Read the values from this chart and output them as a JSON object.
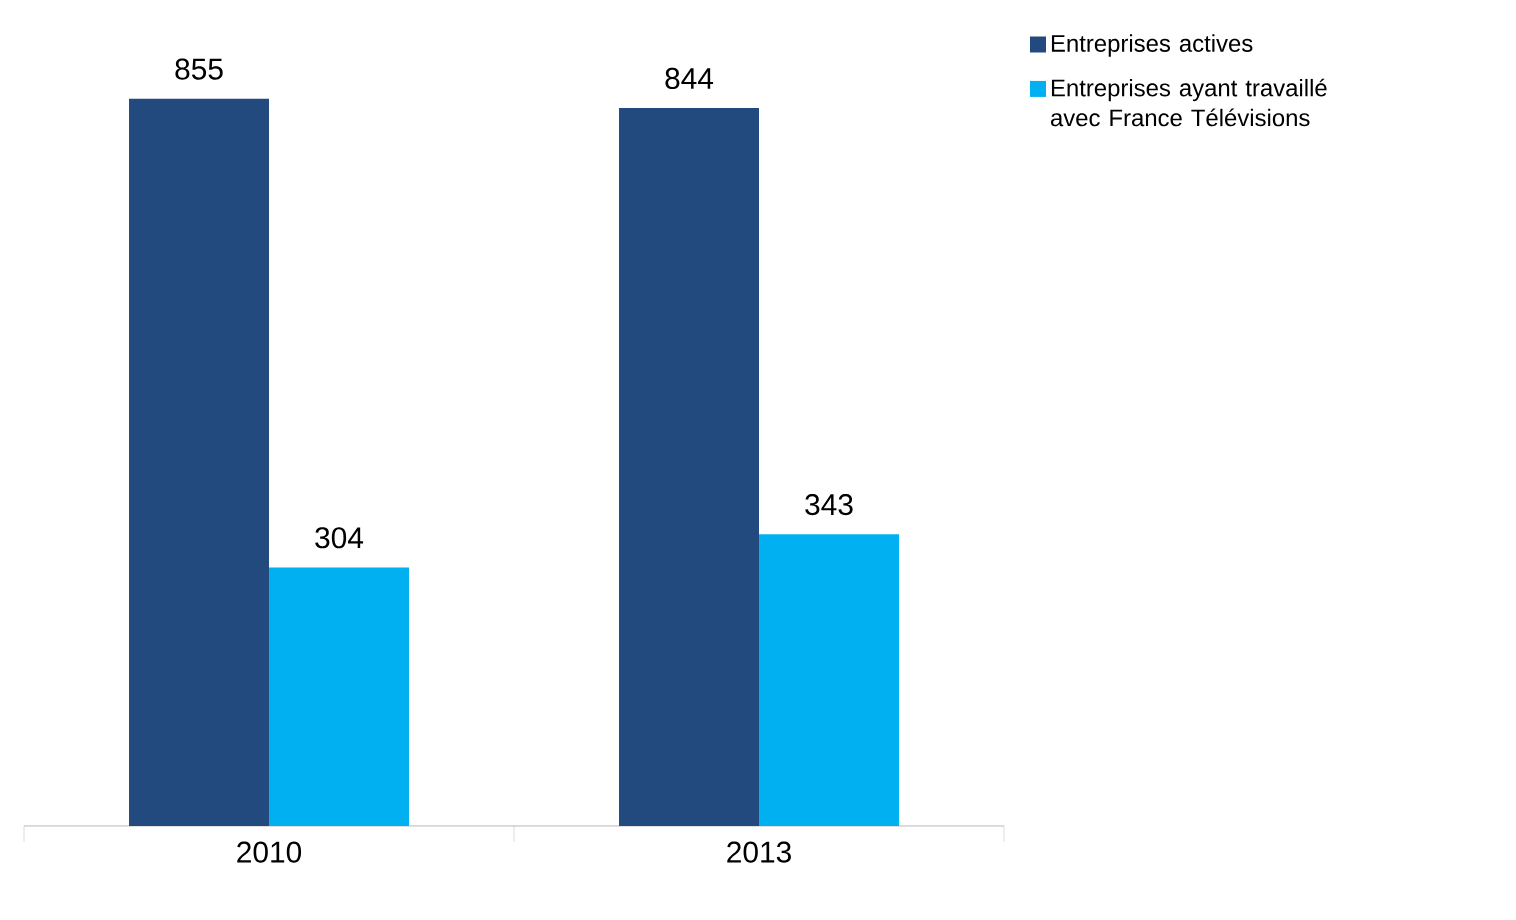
{
  "chart_data": {
    "type": "bar",
    "categories": [
      "2010",
      "2013"
    ],
    "series": [
      {
        "name": "Entreprises actives",
        "color": "#234a7e",
        "values": [
          855,
          844
        ]
      },
      {
        "name": "Entreprises ayant travaillé avec France Télévisions",
        "color": "#00b0f0",
        "values": [
          304,
          343
        ]
      }
    ],
    "data_labels": true,
    "legend": "top right"
  }
}
